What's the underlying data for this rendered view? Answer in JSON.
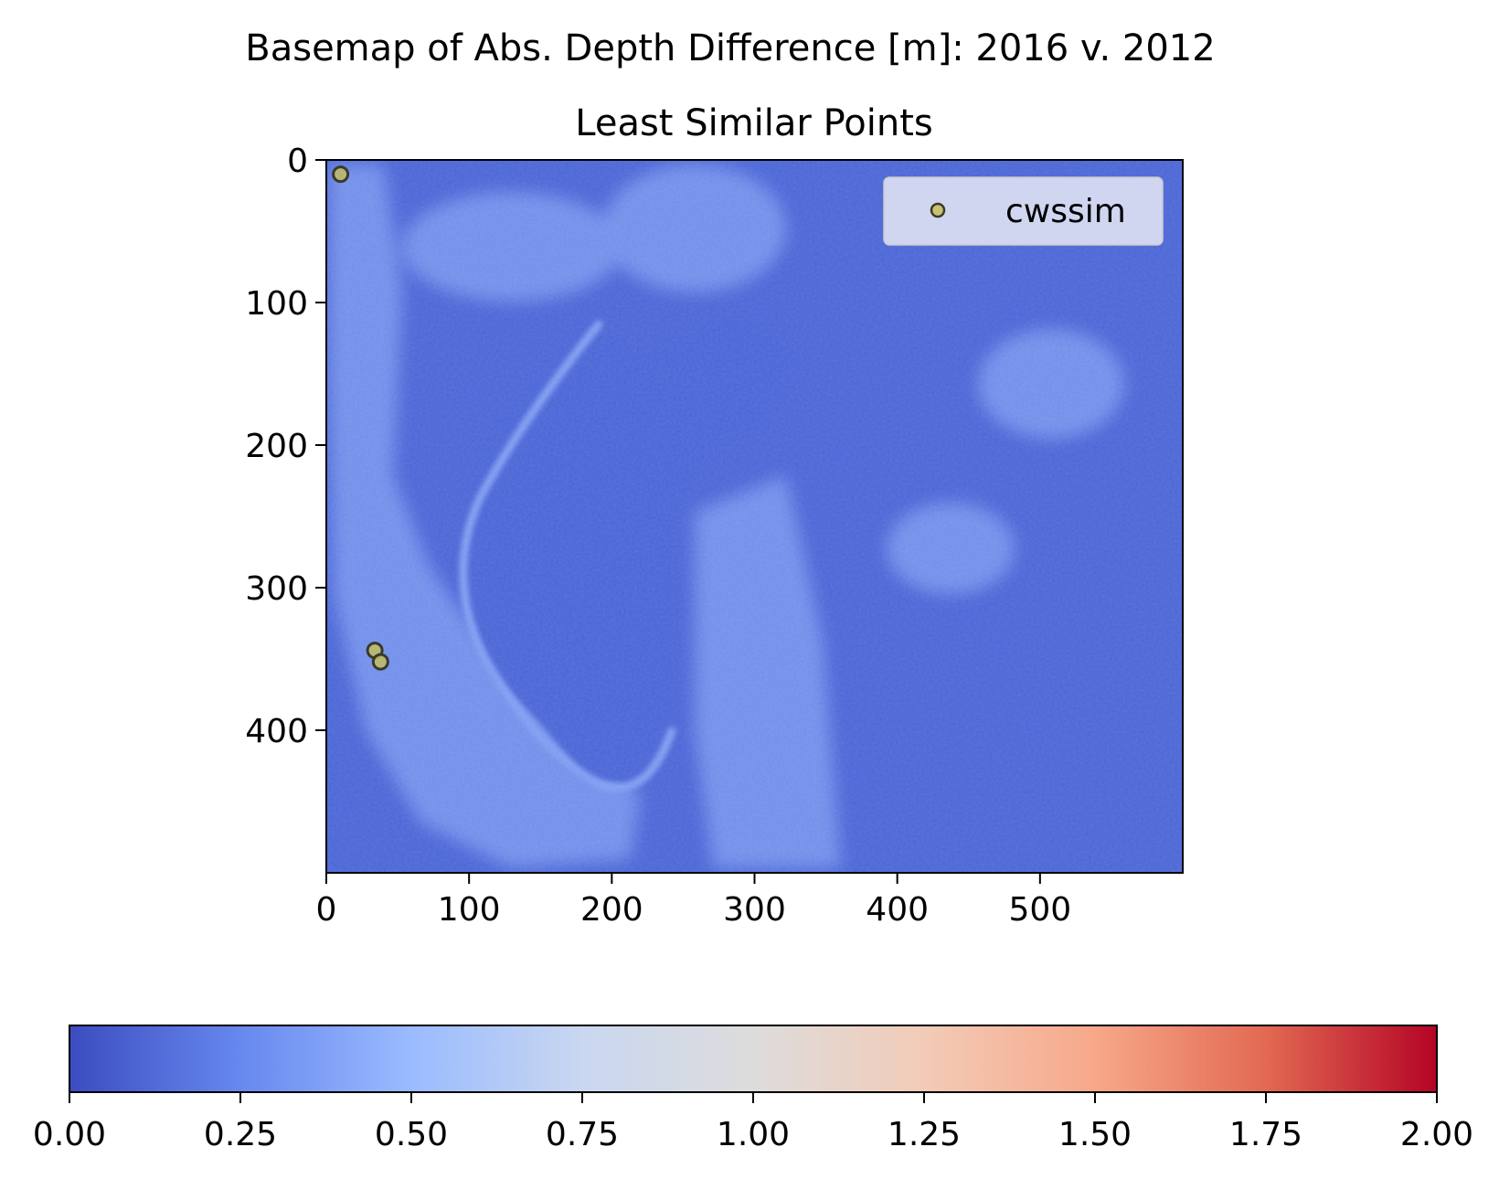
{
  "chart_data": {
    "type": "heatmap",
    "suptitle": "Basemap of Abs. Depth Difference [m]: 2016 v. 2012",
    "title": "Least Similar Points",
    "xlim": [
      0,
      600
    ],
    "ylim": [
      500,
      0
    ],
    "x_ticks": [
      0,
      100,
      200,
      300,
      400,
      500
    ],
    "y_ticks": [
      0,
      100,
      200,
      300,
      400
    ],
    "x_tick_labels": [
      "0",
      "100",
      "200",
      "300",
      "400",
      "500"
    ],
    "y_tick_labels": [
      "0",
      "100",
      "200",
      "300",
      "400"
    ],
    "colormap": "coolwarm",
    "colorbar": {
      "orientation": "horizontal",
      "range": [
        0,
        2
      ],
      "ticks": [
        0,
        0.25,
        0.5,
        0.75,
        1.0,
        1.25,
        1.5,
        1.75,
        2.0
      ],
      "tick_labels": [
        "0.00",
        "0.25",
        "0.50",
        "0.75",
        "1.00",
        "1.25",
        "1.50",
        "1.75",
        "2.00"
      ],
      "colors": [
        "#3b4cc0",
        "#6788ee",
        "#9abbff",
        "#c9d7f0",
        "#dddcdc",
        "#f2cbb7",
        "#f7a889",
        "#e26952",
        "#b40426"
      ]
    },
    "legend": {
      "placement": "upper right",
      "entries": [
        "cwssim"
      ]
    },
    "series": [
      {
        "name": "cwssim",
        "marker_color": "#c8bf5a",
        "edge_color": "#3a3a2a",
        "points": [
          {
            "x": 10,
            "y": 10
          },
          {
            "x": 34,
            "y": 344
          },
          {
            "x": 38,
            "y": 352
          }
        ]
      }
    ],
    "base_color": "#4a65d6",
    "light_color": "#7f9ef2"
  }
}
